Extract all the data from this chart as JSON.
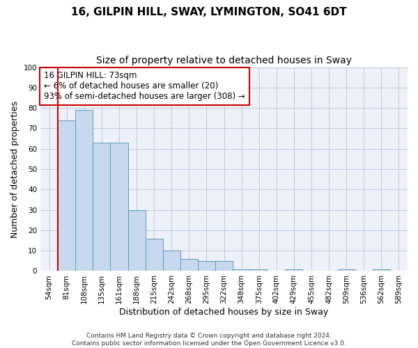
{
  "title": "16, GILPIN HILL, SWAY, LYMINGTON, SO41 6DT",
  "subtitle": "Size of property relative to detached houses in Sway",
  "xlabel": "Distribution of detached houses by size in Sway",
  "ylabel": "Number of detached properties",
  "categories": [
    "54sqm",
    "81sqm",
    "108sqm",
    "135sqm",
    "161sqm",
    "188sqm",
    "215sqm",
    "242sqm",
    "268sqm",
    "295sqm",
    "322sqm",
    "348sqm",
    "375sqm",
    "402sqm",
    "429sqm",
    "455sqm",
    "482sqm",
    "509sqm",
    "536sqm",
    "562sqm",
    "589sqm"
  ],
  "values": [
    0,
    74,
    79,
    63,
    63,
    30,
    16,
    10,
    6,
    5,
    5,
    1,
    1,
    0,
    1,
    0,
    0,
    1,
    0,
    1,
    0
  ],
  "bar_color": "#c8d9ee",
  "bar_edge_color": "#5a9abd",
  "ylim": [
    0,
    100
  ],
  "yticks": [
    0,
    10,
    20,
    30,
    40,
    50,
    60,
    70,
    80,
    90,
    100
  ],
  "property_line_color": "#cc0000",
  "annotation_box_color": "#cc0000",
  "annotation_text": "16 GILPIN HILL: 73sqm\n← 6% of detached houses are smaller (20)\n93% of semi-detached houses are larger (308) →",
  "footer_text": "Contains HM Land Registry data © Crown copyright and database right 2024.\nContains public sector information licensed under the Open Government Licence v3.0.",
  "title_fontsize": 11,
  "subtitle_fontsize": 10,
  "axis_label_fontsize": 9,
  "tick_fontsize": 7.5,
  "annotation_fontsize": 8.5,
  "footer_fontsize": 6.5,
  "background_color": "#eef2f8",
  "grid_color": "#b0b8d0"
}
